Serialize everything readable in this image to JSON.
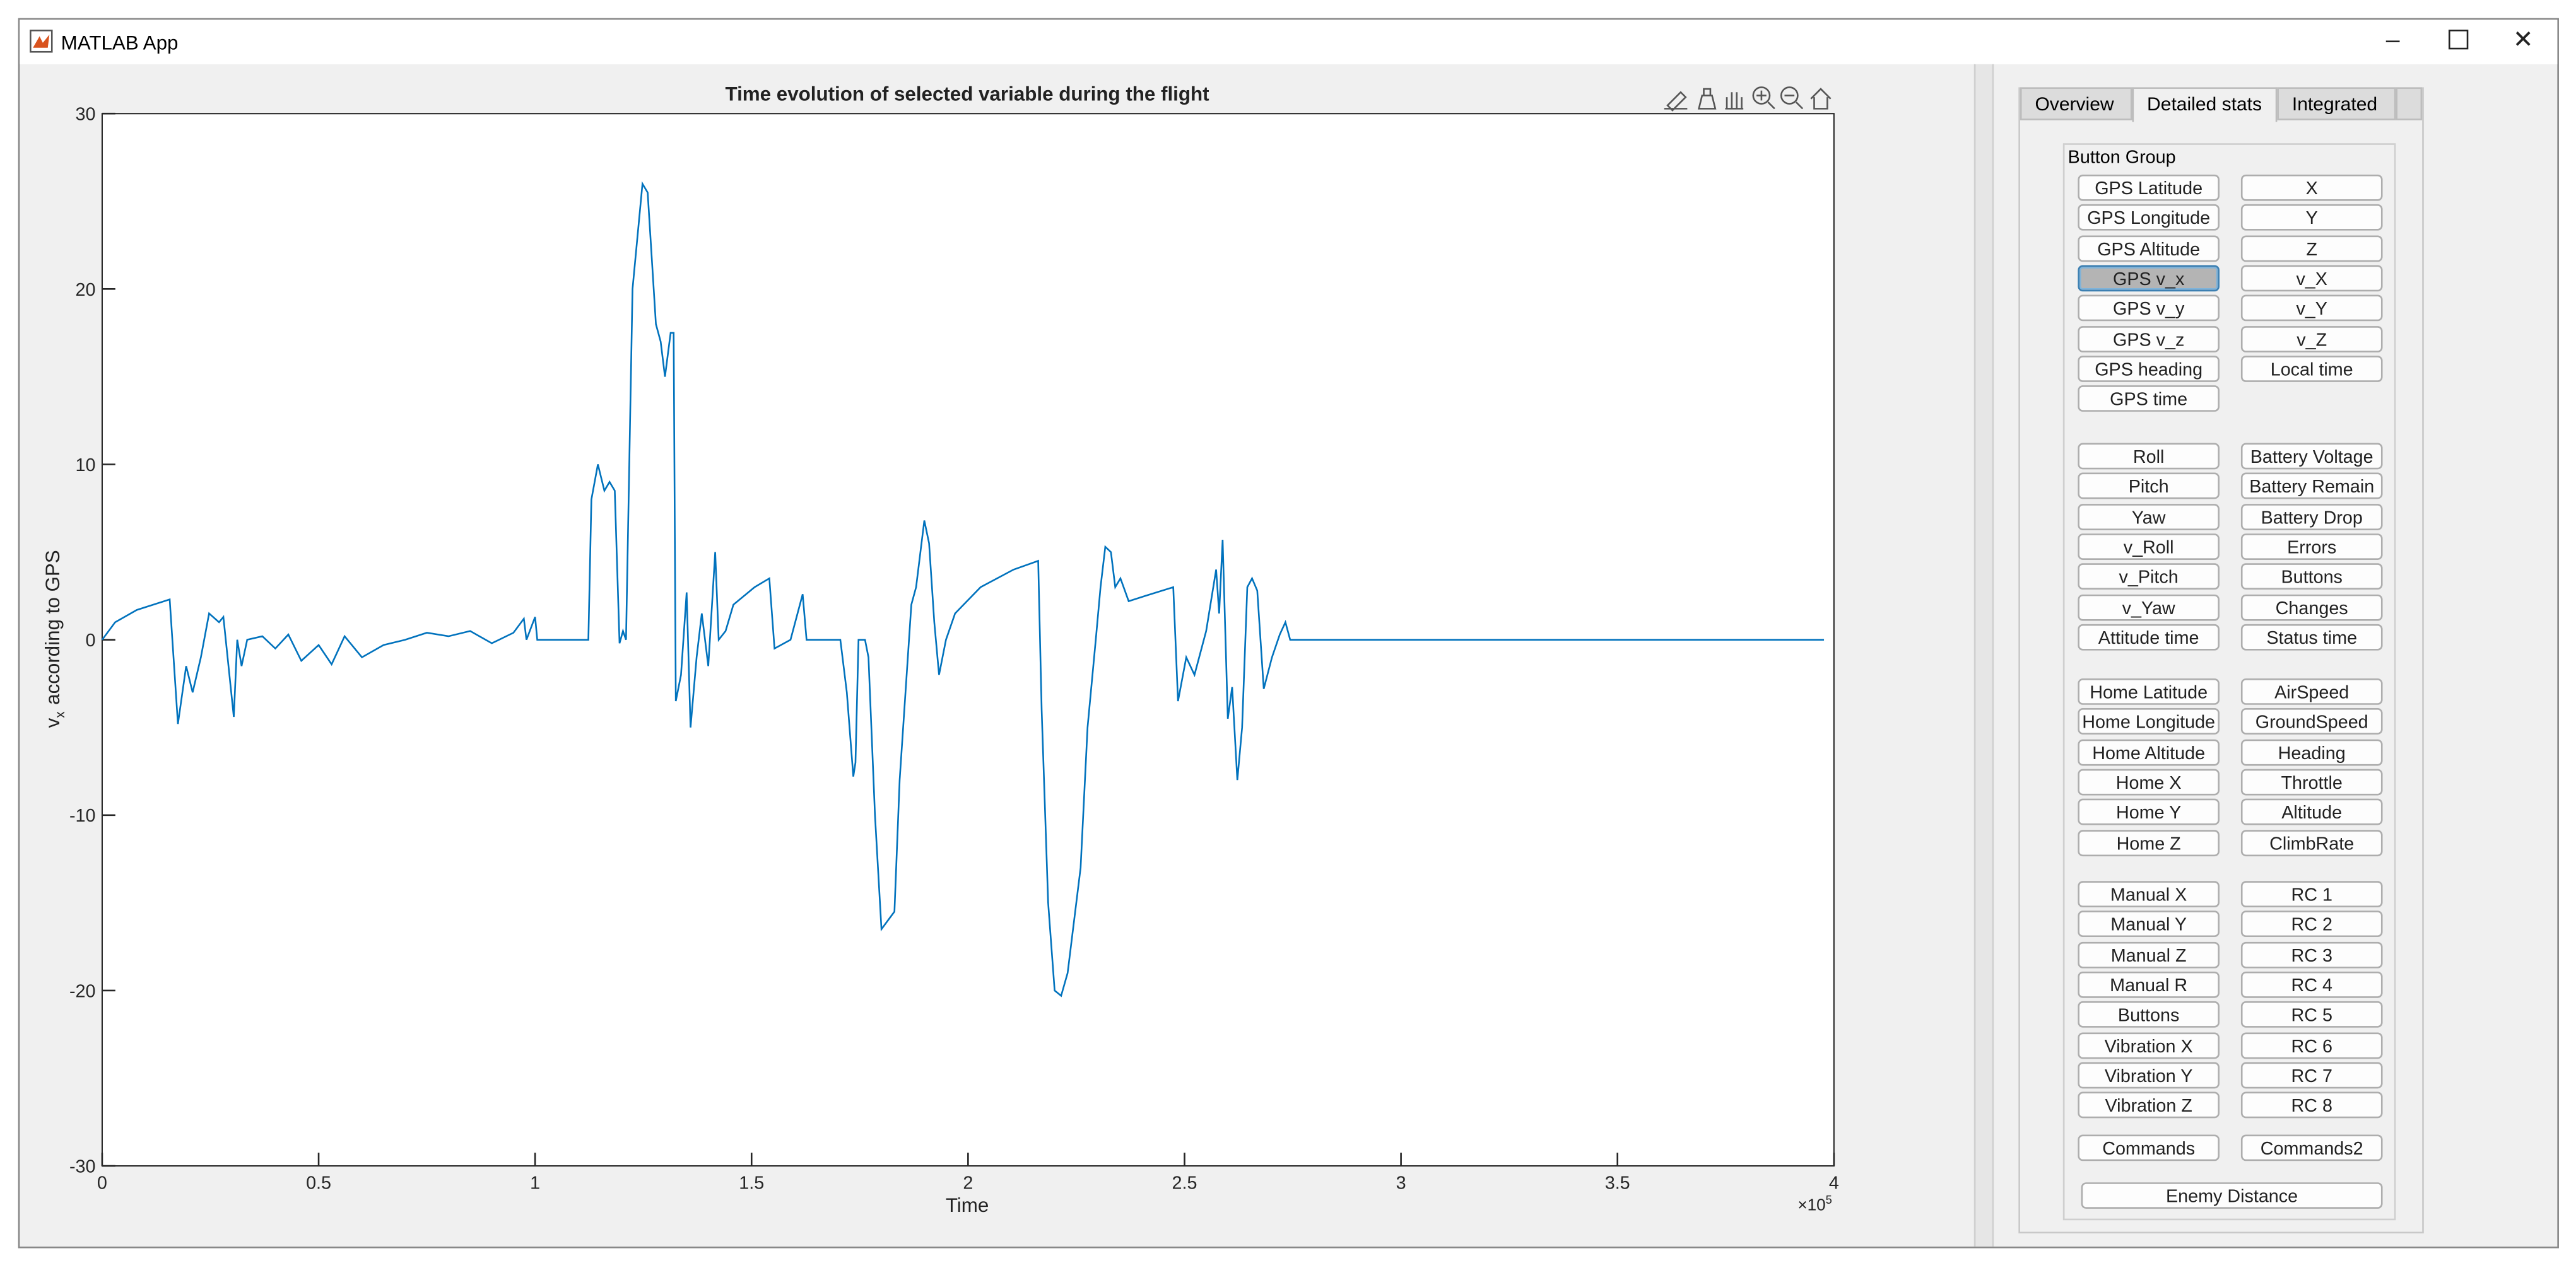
{
  "window": {
    "title": "MATLAB App"
  },
  "tabs": {
    "items": [
      "Overview",
      "Detailed stats",
      "Integrated"
    ],
    "active": 1
  },
  "button_group": {
    "title": "Button Group",
    "sections": [
      {
        "left": [
          "GPS Latitude",
          "GPS Longitude",
          "GPS Altitude",
          "GPS v_x",
          "GPS v_y",
          "GPS v_z",
          "GPS heading",
          "GPS time"
        ],
        "right": [
          "X",
          "Y",
          "Z",
          "v_X",
          "v_Y",
          "v_Z",
          "Local time"
        ]
      },
      {
        "left": [
          "Roll",
          "Pitch",
          "Yaw",
          "v_Roll",
          "v_Pitch",
          "v_Yaw",
          "Attitude time"
        ],
        "right": [
          "Battery Voltage",
          "Battery Remain",
          "Battery Drop",
          "Errors",
          "Buttons",
          "Changes",
          "Status time"
        ]
      },
      {
        "left": [
          "Home Latitude",
          "Home Longitude",
          "Home Altitude",
          "Home X",
          "Home Y",
          "Home Z"
        ],
        "right": [
          "AirSpeed",
          "GroundSpeed",
          "Heading",
          "Throttle",
          "Altitude",
          "ClimbRate"
        ]
      },
      {
        "left": [
          "Manual X",
          "Manual Y",
          "Manual Z",
          "Manual R",
          "Buttons",
          "Vibration X",
          "Vibration Y",
          "Vibration Z"
        ],
        "right": [
          "RC 1",
          "RC 2",
          "RC 3",
          "RC 4",
          "RC 5",
          "RC 6",
          "RC 7",
          "RC 8"
        ]
      },
      {
        "left": [
          "Commands"
        ],
        "right": [
          "Commands2"
        ]
      }
    ],
    "footer_button": "Enemy Distance",
    "selected": {
      "section": 0,
      "column": "left",
      "row": 3
    }
  },
  "chart_data": {
    "type": "line",
    "title": "Time evolution of selected variable during the flight",
    "xlabel": "Time",
    "x_multiplier": {
      "base": "×10",
      "exponent": "5"
    },
    "ylabel": {
      "symbol": "v",
      "subscript": "x",
      "text": "according to GPS"
    },
    "color": "#0072bd",
    "xlim": [
      0,
      4
    ],
    "ylim": [
      -30,
      30
    ],
    "xticks": [
      0,
      0.5,
      1,
      1.5,
      2,
      2.5,
      3,
      3.5,
      4
    ],
    "yticks": [
      -30,
      -20,
      -10,
      0,
      10,
      20,
      30
    ],
    "x": [
      0,
      0.03,
      0.08,
      0.156,
      0.175,
      0.194,
      0.209,
      0.228,
      0.247,
      0.27,
      0.28,
      0.304,
      0.312,
      0.322,
      0.335,
      0.37,
      0.4,
      0.43,
      0.46,
      0.5,
      0.53,
      0.56,
      0.6,
      0.65,
      0.7,
      0.75,
      0.8,
      0.85,
      0.9,
      0.95,
      0.974,
      0.98,
      1.0,
      1.005,
      1.123,
      1.13,
      1.145,
      1.16,
      1.172,
      1.184,
      1.195,
      1.203,
      1.21,
      1.225,
      1.248,
      1.26,
      1.279,
      1.29,
      1.3,
      1.313,
      1.32,
      1.325,
      1.337,
      1.35,
      1.359,
      1.373,
      1.385,
      1.4,
      1.416,
      1.424,
      1.44,
      1.458,
      1.507,
      1.541,
      1.553,
      1.59,
      1.618,
      1.627,
      1.705,
      1.72,
      1.735,
      1.74,
      1.747,
      1.762,
      1.77,
      1.785,
      1.8,
      1.815,
      1.83,
      1.842,
      1.869,
      1.88,
      1.899,
      1.91,
      1.922,
      1.933,
      1.949,
      1.97,
      2.029,
      2.105,
      2.162,
      2.17,
      2.185,
      2.2,
      2.215,
      2.23,
      2.245,
      2.26,
      2.276,
      2.295,
      2.306,
      2.317,
      2.33,
      2.34,
      2.352,
      2.371,
      2.409,
      2.474,
      2.485,
      2.504,
      2.523,
      2.55,
      2.573,
      2.58,
      2.588,
      2.6,
      2.61,
      2.622,
      2.633,
      2.645,
      2.656,
      2.668,
      2.683,
      2.702,
      2.72,
      2.733,
      2.744,
      3.977
    ],
    "values": [
      0,
      1,
      1.7,
      2.3,
      -4.8,
      -1.5,
      -3,
      -1,
      1.5,
      1,
      1.3,
      -4.4,
      0,
      -1.5,
      0,
      0.2,
      -0.5,
      0.3,
      -1.2,
      -0.3,
      -1.4,
      0.2,
      -1,
      -0.3,
      0,
      0.4,
      0.2,
      0.5,
      -0.2,
      0.4,
      1.2,
      0,
      1.3,
      0,
      0,
      8,
      10,
      8.5,
      9,
      8.5,
      -0.2,
      0.5,
      0,
      20,
      26,
      25.5,
      18,
      17,
      15,
      17.5,
      17.5,
      -3.5,
      -2,
      2.7,
      -5,
      -1,
      1.5,
      -1.5,
      5,
      0,
      0.5,
      2,
      3,
      3.5,
      -0.5,
      0,
      2.6,
      0,
      0,
      -3,
      -7.8,
      -7,
      0,
      0,
      -1,
      -10,
      -16.5,
      -16,
      -15.5,
      -8,
      2,
      3,
      6.8,
      5.5,
      1,
      -2,
      0,
      1.5,
      3,
      4,
      4.5,
      -4,
      -15,
      -20,
      -20.3,
      -19,
      -16,
      -13,
      -5,
      0,
      3,
      5.3,
      5,
      3,
      3.5,
      2.2,
      2.5,
      3,
      -3.5,
      -1,
      -2,
      0.5,
      4,
      1.5,
      5.7,
      -4.5,
      -2.7,
      -8,
      -5,
      3,
      3.5,
      2.8,
      -2.8,
      -1,
      0.3,
      1,
      0,
      0
    ]
  }
}
